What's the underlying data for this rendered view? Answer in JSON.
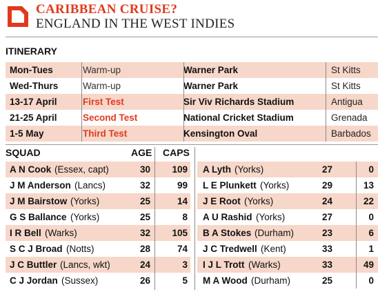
{
  "header": {
    "title": "CARIBBEAN CRUISE?",
    "subtitle": "ENGLAND IN THE WEST INDIES"
  },
  "itinerary": {
    "heading": "ITINERARY",
    "rows": [
      {
        "dates": "Mon-Tues",
        "event": "Warm-up",
        "venue": "Warner Park",
        "place": "St Kitts"
      },
      {
        "dates": "Wed-Thurs",
        "event": "Warm-up",
        "venue": "Warner Park",
        "place": "St Kitts"
      },
      {
        "dates": "13-17 April",
        "event": "First Test",
        "venue": "Sir Viv Richards Stadium",
        "place": "Antigua"
      },
      {
        "dates": "21-25 April",
        "event": "Second Test",
        "venue": "National Cricket Stadium",
        "place": "Grenada"
      },
      {
        "dates": "1-5 May",
        "event": "Third Test",
        "venue": "Kensington Oval",
        "place": "Barbados"
      }
    ]
  },
  "squad": {
    "heading": "SQUAD",
    "age_label": "AGE",
    "caps_label": "CAPS",
    "left": [
      {
        "name": "A N Cook",
        "club": "(Essex, capt)",
        "age": "30",
        "caps": "109"
      },
      {
        "name": "J M Anderson",
        "club": "(Lancs)",
        "age": "32",
        "caps": "99"
      },
      {
        "name": "J M Bairstow",
        "club": "(Yorks)",
        "age": "25",
        "caps": "14"
      },
      {
        "name": "G S Ballance",
        "club": "(Yorks)",
        "age": "25",
        "caps": "8"
      },
      {
        "name": "I R Bell",
        "club": "(Warks)",
        "age": "32",
        "caps": "105"
      },
      {
        "name": "S C J Broad",
        "club": "(Notts)",
        "age": "28",
        "caps": "74"
      },
      {
        "name": "J C Buttler",
        "club": "(Lancs, wkt)",
        "age": "24",
        "caps": "3"
      },
      {
        "name": "C J Jordan",
        "club": "(Sussex)",
        "age": "26",
        "caps": "5"
      }
    ],
    "right": [
      {
        "name": "A Lyth",
        "club": "(Yorks)",
        "age": "27",
        "caps": "0"
      },
      {
        "name": "L E Plunkett",
        "club": "(Yorks)",
        "age": "29",
        "caps": "13"
      },
      {
        "name": "J E Root",
        "club": "(Yorks)",
        "age": "24",
        "caps": "22"
      },
      {
        "name": "A U Rashid",
        "club": "(Yorks)",
        "age": "27",
        "caps": "0"
      },
      {
        "name": "B A Stokes",
        "club": "(Durham)",
        "age": "23",
        "caps": "6"
      },
      {
        "name": "J C Tredwell",
        "club": "(Kent)",
        "age": "33",
        "caps": "1"
      },
      {
        "name": "I J L Trott",
        "club": "(Warks)",
        "age": "33",
        "caps": "49"
      },
      {
        "name": "M A Wood",
        "club": "(Durham)",
        "age": "25",
        "caps": "0"
      }
    ]
  }
}
